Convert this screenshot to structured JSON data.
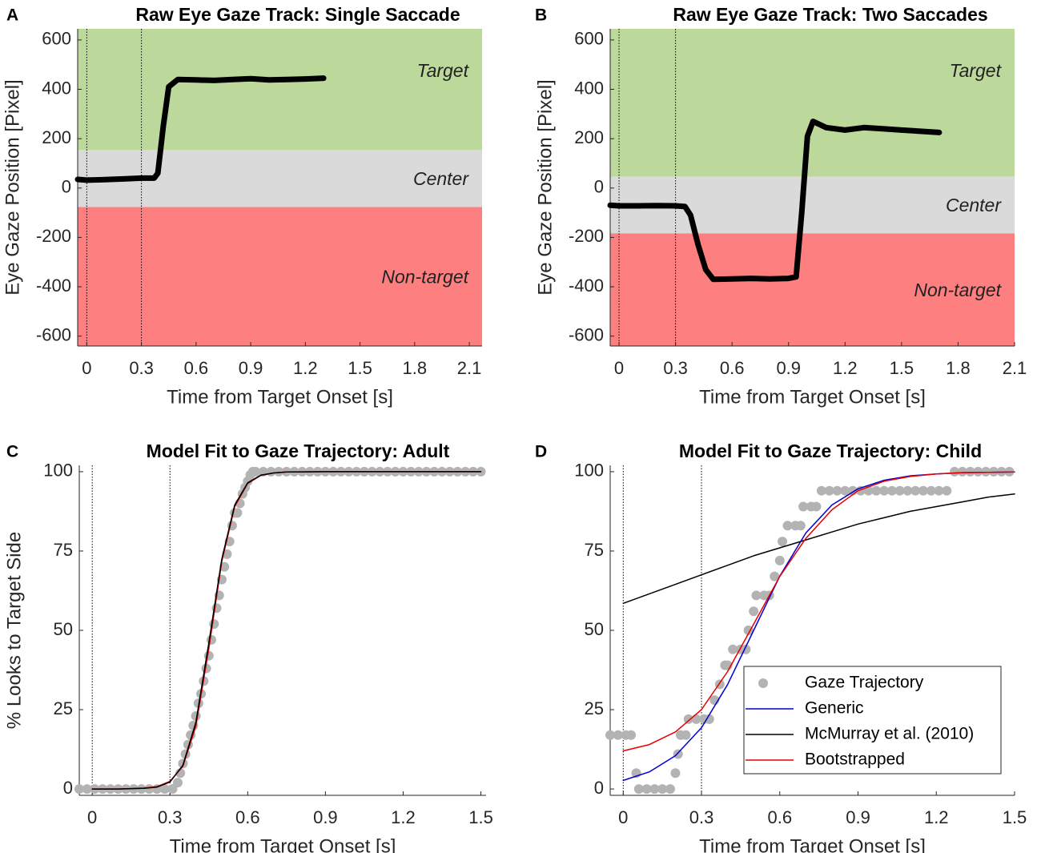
{
  "chart_data": [
    {
      "type": "line",
      "label": "A",
      "title": "Raw Eye Gaze Track: Single Saccade",
      "xlabel": "Time from Target Onset [s]",
      "ylabel": "Eye Gaze Position [Pixel]",
      "xlim": [
        -0.05,
        2.17
      ],
      "ylim": [
        -640,
        645
      ],
      "xticks": [
        0,
        0.3,
        0.6,
        0.9,
        1.2,
        1.5,
        1.8,
        2.1
      ],
      "yticks": [
        -600,
        -400,
        -200,
        0,
        200,
        400,
        600
      ],
      "vlines": [
        0,
        0.3
      ],
      "regions": [
        {
          "label": "Target",
          "from": 155,
          "to": 645,
          "color": "#bdd89b"
        },
        {
          "label": "Center",
          "from": -77,
          "to": 155,
          "color": "#dadada"
        },
        {
          "label": "Non-target",
          "from": -640,
          "to": -77,
          "color": "#fe7f7f"
        }
      ],
      "series": [
        {
          "color": "#000000",
          "x": [
            -0.05,
            0,
            0.1,
            0.2,
            0.3,
            0.37,
            0.39,
            0.42,
            0.45,
            0.5,
            0.6,
            0.7,
            0.8,
            0.9,
            1.0,
            1.1,
            1.2,
            1.3
          ],
          "values": [
            35,
            32,
            34,
            37,
            40,
            40,
            60,
            250,
            410,
            440,
            438,
            436,
            440,
            443,
            438,
            440,
            442,
            445
          ]
        }
      ]
    },
    {
      "type": "line",
      "label": "B",
      "title": "Raw Eye Gaze Track: Two Saccades",
      "xlabel": "Time from Target Onset [s]",
      "ylabel": "Eye Gaze Position [Pixel]",
      "xlim": [
        -0.047,
        2.1
      ],
      "ylim": [
        -640,
        645
      ],
      "xticks": [
        0,
        0.3,
        0.6,
        0.9,
        1.2,
        1.5,
        1.8,
        2.1
      ],
      "yticks": [
        -600,
        -400,
        -200,
        0,
        200,
        400,
        600
      ],
      "vlines": [
        0,
        0.3
      ],
      "regions": [
        {
          "label": "Target",
          "from": 46,
          "to": 645,
          "color": "#bdd89b"
        },
        {
          "label": "Center",
          "from": -184,
          "to": 46,
          "color": "#dadada"
        },
        {
          "label": "Non-target",
          "from": -640,
          "to": -184,
          "color": "#fe7f7f"
        }
      ],
      "series": [
        {
          "color": "#000000",
          "x": [
            -0.047,
            0,
            0.1,
            0.2,
            0.3,
            0.35,
            0.38,
            0.42,
            0.46,
            0.5,
            0.6,
            0.7,
            0.8,
            0.9,
            0.94,
            0.97,
            1.0,
            1.03,
            1.1,
            1.2,
            1.3,
            1.4,
            1.5,
            1.6,
            1.7
          ],
          "values": [
            -70,
            -72,
            -72,
            -71,
            -72,
            -75,
            -110,
            -230,
            -330,
            -370,
            -368,
            -366,
            -368,
            -366,
            -360,
            -100,
            210,
            270,
            245,
            235,
            245,
            240,
            235,
            230,
            225
          ]
        }
      ]
    },
    {
      "type": "scatter",
      "label": "C",
      "title": "Model Fit to Gaze Trajectory: Adult",
      "xlabel": "Time from Target Onset [s]",
      "ylabel": "% Looks to Target Side",
      "xlim": [
        -0.05,
        1.52
      ],
      "ylim": [
        -2,
        102
      ],
      "xticks": [
        0,
        0.3,
        0.6,
        0.9,
        1.2,
        1.5
      ],
      "yticks": [
        0,
        25,
        50,
        75,
        100
      ],
      "vlines": [
        0,
        0.3
      ],
      "series": [
        {
          "mode": "markers",
          "color": "#b3b3b3",
          "x": [
            -0.05,
            -0.02,
            0.01,
            0.04,
            0.07,
            0.1,
            0.13,
            0.16,
            0.19,
            0.22,
            0.25,
            0.28,
            0.31,
            0.33,
            0.34,
            0.35,
            0.36,
            0.37,
            0.38,
            0.39,
            0.4,
            0.41,
            0.42,
            0.43,
            0.44,
            0.45,
            0.46,
            0.47,
            0.48,
            0.49,
            0.5,
            0.51,
            0.52,
            0.53,
            0.54,
            0.55,
            0.56,
            0.57,
            0.58,
            0.59,
            0.6,
            0.61,
            0.62,
            0.63,
            0.66,
            0.69,
            0.72,
            0.75,
            0.78,
            0.81,
            0.84,
            0.87,
            0.9,
            0.93,
            0.96,
            0.99,
            1.02,
            1.05,
            1.08,
            1.11,
            1.14,
            1.17,
            1.2,
            1.23,
            1.26,
            1.29,
            1.32,
            1.35,
            1.38,
            1.41,
            1.44,
            1.47,
            1.5
          ],
          "values": [
            0,
            0,
            0,
            0,
            0,
            0,
            0,
            0,
            0,
            0,
            0,
            0,
            0,
            2,
            5,
            8,
            11,
            14,
            17,
            20,
            23,
            27,
            30,
            34,
            38,
            42,
            47,
            52,
            57,
            61,
            66,
            70,
            74,
            78,
            83,
            87,
            87,
            90,
            93,
            95,
            97,
            99,
            100,
            100,
            100,
            100,
            100,
            100,
            100,
            100,
            100,
            100,
            100,
            100,
            100,
            100,
            100,
            100,
            100,
            100,
            100,
            100,
            100,
            100,
            100,
            100,
            100,
            100,
            100,
            100,
            100,
            100,
            100
          ]
        },
        {
          "mode": "lines",
          "color": "#d40000",
          "x": [
            0,
            0.1,
            0.2,
            0.25,
            0.3,
            0.35,
            0.4,
            0.45,
            0.5,
            0.55,
            0.6,
            0.65,
            0.7,
            0.75,
            0.9,
            1.2,
            1.5
          ],
          "values": [
            0,
            0,
            0.3,
            0.75,
            2.4,
            7.2,
            19.8,
            44.3,
            71.7,
            89,
            96.3,
            98.8,
            99.6,
            99.9,
            100,
            100,
            100
          ]
        },
        {
          "mode": "lines",
          "color": "#000000",
          "x": [
            0,
            0.1,
            0.2,
            0.25,
            0.3,
            0.35,
            0.4,
            0.45,
            0.5,
            0.55,
            0.6,
            0.65,
            0.7,
            0.75,
            0.9,
            1.2,
            1.5
          ],
          "values": [
            0,
            0,
            0.2,
            0.6,
            2.2,
            7.5,
            21,
            46,
            72.5,
            89.5,
            96.5,
            98.9,
            99.6,
            99.9,
            100,
            100,
            100
          ]
        }
      ]
    },
    {
      "type": "scatter",
      "label": "D",
      "title": "Model Fit to Gaze Trajectory: Child",
      "xlabel": "Time from Target Onset [s]",
      "xlim": [
        -0.05,
        1.5
      ],
      "ylim": [
        -2,
        102
      ],
      "xticks": [
        0,
        0.3,
        0.6,
        0.9,
        1.2,
        1.5
      ],
      "yticks": [
        0,
        25,
        50,
        75,
        100
      ],
      "vlines": [
        0,
        0.3
      ],
      "legend": "lower right",
      "series": [
        {
          "name": "Gaze Trajectory",
          "mode": "markers",
          "color": "#b3b3b3",
          "x": [
            -0.05,
            -0.02,
            0.01,
            0.03,
            0.05,
            0.06,
            0.09,
            0.12,
            0.15,
            0.18,
            0.2,
            0.21,
            0.22,
            0.24,
            0.25,
            0.28,
            0.31,
            0.33,
            0.35,
            0.37,
            0.39,
            0.4,
            0.42,
            0.45,
            0.47,
            0.48,
            0.5,
            0.51,
            0.54,
            0.56,
            0.58,
            0.6,
            0.61,
            0.63,
            0.66,
            0.68,
            0.69,
            0.72,
            0.74,
            0.76,
            0.79,
            0.82,
            0.85,
            0.88,
            0.91,
            0.94,
            0.97,
            1.0,
            1.03,
            1.06,
            1.09,
            1.12,
            1.15,
            1.18,
            1.21,
            1.24,
            1.27,
            1.3,
            1.33,
            1.36,
            1.39,
            1.42,
            1.45,
            1.48
          ],
          "values": [
            17,
            17,
            17,
            17,
            5,
            0,
            0,
            0,
            0,
            0,
            5,
            11,
            17,
            17,
            22,
            22,
            22,
            22,
            28,
            33,
            39,
            39,
            44,
            44,
            44,
            50,
            56,
            61,
            61,
            61,
            67,
            72,
            78,
            83,
            83,
            83,
            89,
            89,
            89,
            94,
            94,
            94,
            94,
            94,
            94,
            94,
            94,
            94,
            94,
            94,
            94,
            94,
            94,
            94,
            94,
            94,
            100,
            100,
            100,
            100,
            100,
            100,
            100,
            100
          ]
        },
        {
          "name": "Generic",
          "mode": "lines",
          "color": "#0000d4",
          "x": [
            0,
            0.1,
            0.2,
            0.3,
            0.4,
            0.5,
            0.6,
            0.7,
            0.8,
            0.9,
            1.0,
            1.1,
            1.2,
            1.3,
            1.4,
            1.5
          ],
          "values": [
            2.7,
            5.4,
            10.5,
            19.3,
            32.9,
            50,
            67.1,
            80.7,
            89.5,
            94.6,
            97.3,
            98.7,
            99.3,
            99.7,
            99.8,
            99.9
          ]
        },
        {
          "name": "McMurray et al. (2010)",
          "mode": "lines",
          "color": "#000000",
          "x": [
            0,
            0.1,
            0.2,
            0.3,
            0.4,
            0.5,
            0.6,
            0.7,
            0.8,
            0.9,
            1.0,
            1.1,
            1.2,
            1.3,
            1.4,
            1.5
          ],
          "values": [
            58.5,
            61.5,
            64.5,
            67.5,
            70.5,
            73.5,
            76,
            78.5,
            81,
            83.5,
            85.5,
            87.5,
            89,
            90.5,
            92,
            93
          ]
        },
        {
          "name": "Bootstrapped",
          "mode": "lines",
          "color": "#e60000",
          "x": [
            0,
            0.1,
            0.2,
            0.3,
            0.4,
            0.5,
            0.6,
            0.7,
            0.8,
            0.9,
            1.0,
            1.1,
            1.2,
            1.3,
            1.4,
            1.5
          ],
          "values": [
            12,
            14,
            18,
            25,
            37,
            52,
            67,
            79,
            88,
            94,
            97,
            98.5,
            99.3,
            99.7,
            99.8,
            99.9
          ]
        }
      ]
    }
  ]
}
